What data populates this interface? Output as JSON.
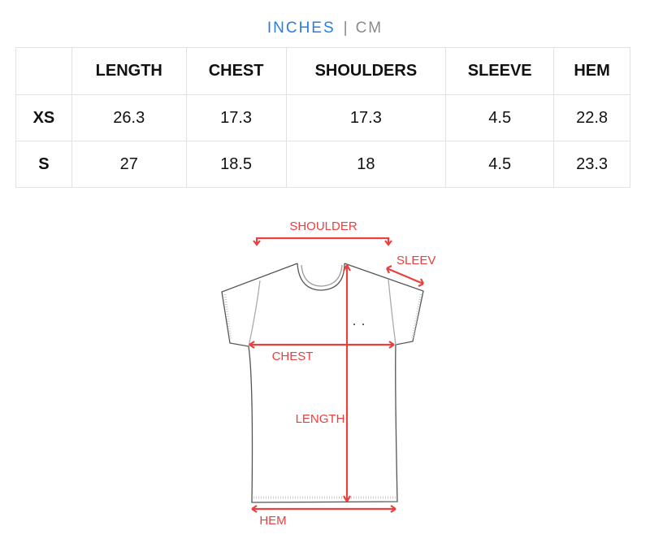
{
  "units": {
    "active": "INCHES",
    "separator": "|",
    "inactive": "CM"
  },
  "table": {
    "headers": [
      "",
      "LENGTH",
      "CHEST",
      "SHOULDERS",
      "SLEEVE",
      "HEM"
    ],
    "rows": [
      {
        "size": "XS",
        "values": [
          "26.3",
          "17.3",
          "17.3",
          "4.5",
          "22.8"
        ]
      },
      {
        "size": "S",
        "values": [
          "27",
          "18.5",
          "18",
          "4.5",
          "23.3"
        ]
      }
    ]
  },
  "diagram": {
    "accent_color": "#e8413f",
    "labels": {
      "shoulder": "SHOULDER",
      "sleeve": "SLEEV",
      "chest": "CHEST",
      "length": "LENGTH",
      "hem": "HEM"
    }
  }
}
